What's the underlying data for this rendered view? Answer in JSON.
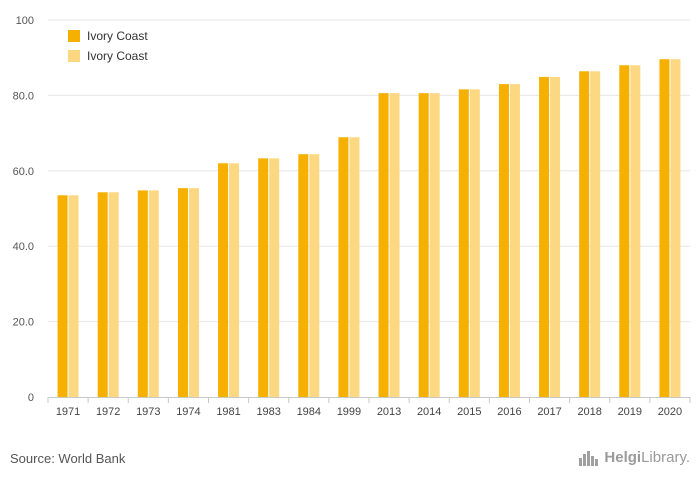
{
  "chart_data": {
    "type": "bar",
    "categories": [
      "1971",
      "1972",
      "1973",
      "1974",
      "1981",
      "1983",
      "1984",
      "1999",
      "2013",
      "2014",
      "2015",
      "2016",
      "2017",
      "2018",
      "2019",
      "2020"
    ],
    "series": [
      {
        "name": "Ivory Coast",
        "color": "#f5b000",
        "values": [
          53.5,
          54.3,
          54.8,
          55.4,
          62.0,
          63.3,
          64.4,
          68.9,
          80.6,
          80.6,
          81.6,
          83.0,
          84.9,
          86.4,
          88.0,
          89.6
        ]
      },
      {
        "name": "Ivory Coast",
        "color": "#fdd882",
        "values": [
          53.5,
          54.3,
          54.8,
          55.4,
          62.0,
          63.3,
          64.4,
          68.9,
          80.6,
          80.6,
          81.6,
          83.0,
          84.9,
          86.4,
          88.0,
          89.6
        ]
      }
    ],
    "yticks": [
      "0",
      "20.0",
      "40.0",
      "60.0",
      "80.0",
      "100"
    ],
    "ylim": [
      0,
      100
    ],
    "grid": true,
    "legend": "top-left",
    "title": "",
    "xlabel": "",
    "ylabel": ""
  },
  "footer": {
    "source": "Source: World Bank",
    "logo_bold": "Helgi",
    "logo_rest": "Library."
  }
}
